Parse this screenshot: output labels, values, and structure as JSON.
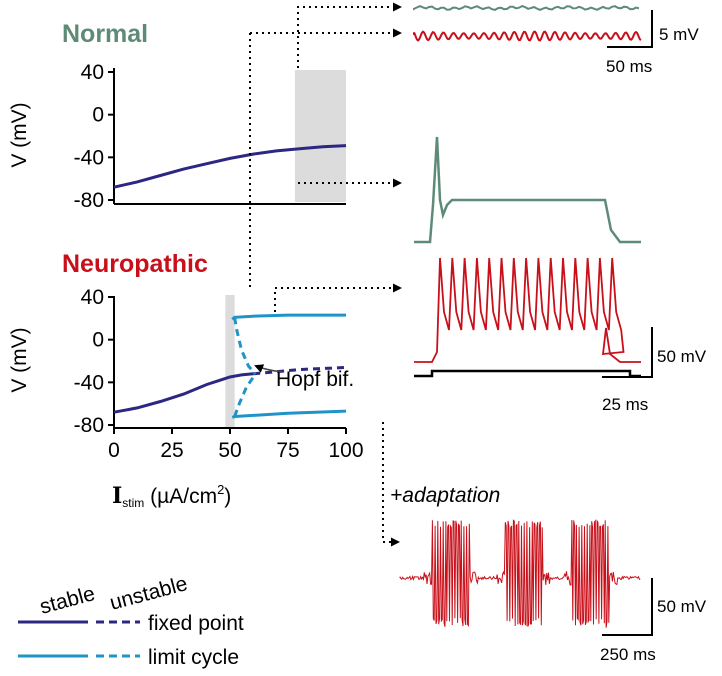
{
  "colors": {
    "normal_title": "#5e8b78",
    "neuro_title": "#c8101a",
    "fixed_point": "#2b2782",
    "limit_cycle": "#1f94c8",
    "shade": "#dcdcdc",
    "trace_green": "#5e8b78",
    "trace_red": "#c8101a"
  },
  "labels": {
    "normal": "Normal",
    "neuropathic": "Neuropathic",
    "ylabel_top": "V (mV)",
    "ylabel_bottom": "V (mV)",
    "xlabel_main": "I",
    "xlabel_sub": "stim",
    "xlabel_units": " (µA/cm",
    "xlabel_sup": "2",
    "xlabel_close": ")",
    "hopf": "Hopf bif.",
    "adaptation": "+adaptation",
    "scalebar_5mv": "5 mV",
    "scalebar_50ms": "50 ms",
    "scalebar_50mv_a": "50 mV",
    "scalebar_25ms": "25 ms",
    "scalebar_50mv_b": "50 mV",
    "scalebar_250ms": "250 ms"
  },
  "legend": {
    "stable": "stable",
    "unstable": "unstable",
    "fixed_point": "fixed point",
    "limit_cycle": "limit cycle"
  },
  "chart_data": [
    {
      "type": "line",
      "panel": "Normal",
      "ylabel": "V (mV)",
      "xlim": [
        0,
        100
      ],
      "ylim": [
        -80,
        40
      ],
      "yticks": [
        "40",
        "0",
        "-40",
        "-80"
      ],
      "shaded_range_x": [
        78,
        100
      ],
      "series": [
        {
          "name": "fixed point",
          "style": "stable",
          "x": [
            0,
            10,
            20,
            30,
            40,
            50,
            60,
            70,
            80,
            90,
            100
          ],
          "y": [
            -68,
            -63,
            -57,
            -51,
            -46,
            -41,
            -37,
            -34,
            -32,
            -30,
            -29
          ]
        }
      ]
    },
    {
      "type": "line",
      "panel": "Neuropathic",
      "ylabel": "V (mV)",
      "xlabel": "Istim (µA/cm2)",
      "xlim": [
        0,
        100
      ],
      "ylim": [
        -80,
        40
      ],
      "xticks": [
        "0",
        "25",
        "50",
        "75",
        "100"
      ],
      "yticks": [
        "40",
        "0",
        "-40",
        "-80"
      ],
      "shaded_range_x": [
        48,
        52
      ],
      "series": [
        {
          "name": "fixed point",
          "style": "stable",
          "x": [
            0,
            10,
            20,
            30,
            40,
            50,
            55,
            60
          ],
          "y": [
            -68,
            -64,
            -58,
            -51,
            -42,
            -35,
            -33,
            -32
          ]
        },
        {
          "name": "fixed point",
          "style": "unstable",
          "x": [
            60,
            70,
            80,
            90,
            100
          ],
          "y": [
            -32,
            -30,
            -28,
            -27,
            -26
          ]
        },
        {
          "name": "limit cycle",
          "style": "stable",
          "x": [
            51,
            52,
            60,
            75,
            100
          ],
          "y": [
            19,
            21,
            22,
            23,
            23
          ]
        },
        {
          "name": "limit cycle",
          "style": "stable",
          "x": [
            51,
            52,
            60,
            75,
            100
          ],
          "y": [
            -73,
            -72,
            -71,
            -69,
            -67
          ]
        },
        {
          "name": "limit cycle",
          "style": "unstable",
          "x": [
            52,
            53,
            55,
            58,
            61
          ],
          "y": [
            21,
            8,
            -10,
            -25,
            -32
          ]
        },
        {
          "name": "limit cycle",
          "style": "unstable",
          "x": [
            52,
            54,
            57,
            61
          ],
          "y": [
            -72,
            -60,
            -45,
            -32
          ]
        }
      ]
    }
  ]
}
